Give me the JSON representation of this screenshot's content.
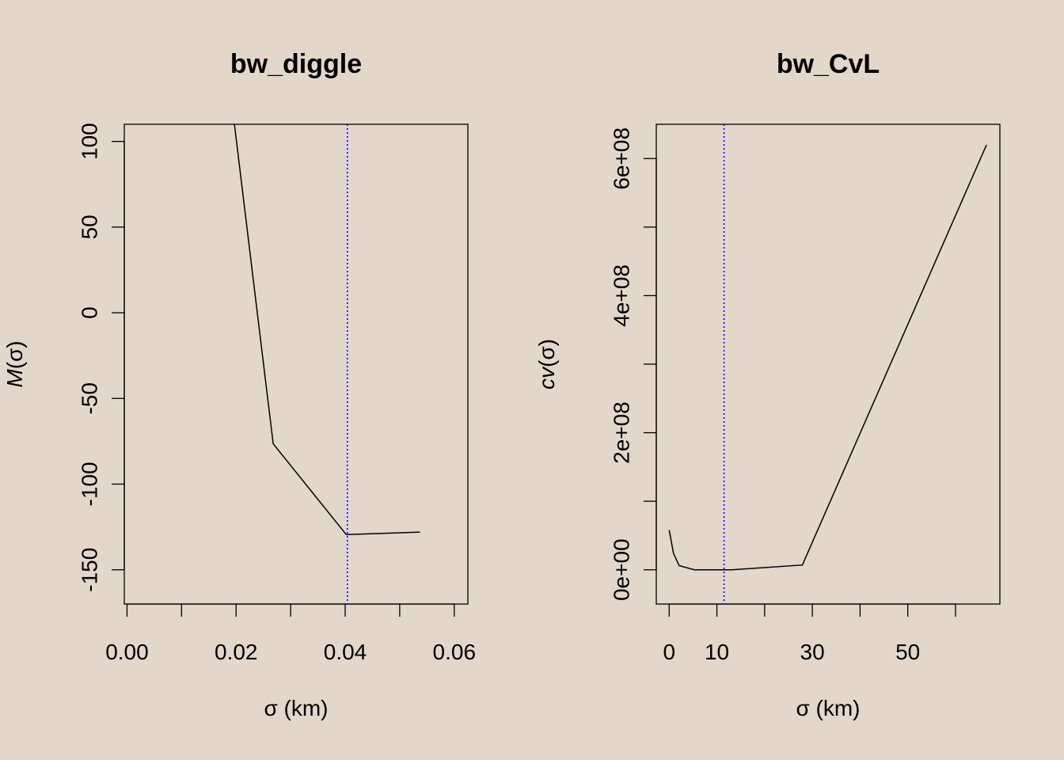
{
  "chart_data": [
    {
      "type": "line",
      "title": "bw_diggle",
      "xlabel": "σ (km)",
      "ylabel_func": "M",
      "ylabel_arg": "(σ)",
      "xlim": [
        -0.0005,
        0.0625
      ],
      "ylim": [
        -170,
        110
      ],
      "xticks": [
        0.0,
        0.01,
        0.02,
        0.03,
        0.04,
        0.05,
        0.06
      ],
      "xtick_labels": [
        "0.00",
        "0.02",
        "0.04",
        "0.06"
      ],
      "xtick_label_values": [
        0.0,
        0.02,
        0.04,
        0.06
      ],
      "yticks": [
        100,
        50,
        0,
        -50,
        -100,
        -150
      ],
      "ytick_labels": [
        "100",
        "50",
        "0",
        "-50",
        "-100",
        "-150"
      ],
      "series": [
        {
          "name": "M(σ)",
          "color": "#000000",
          "x": [
            0.0195,
            0.0268,
            0.0402,
            0.0537
          ],
          "y": [
            115,
            -76.5,
            -129.5,
            -128
          ]
        }
      ],
      "vline": {
        "x": 0.0404,
        "color": "#0000ff",
        "style": "dotted"
      }
    },
    {
      "type": "line",
      "title": "bw_CvL",
      "xlabel": "σ (km)",
      "ylabel_func": "cv",
      "ylabel_arg": "(σ)",
      "xlim": [
        -2.7,
        69.3
      ],
      "ylim": [
        -50000000,
        650000000
      ],
      "xticks": [
        0,
        10,
        20,
        30,
        40,
        50,
        60
      ],
      "xtick_labels": [
        "0",
        "10",
        "30",
        "50"
      ],
      "xtick_label_values": [
        0,
        10,
        30,
        50
      ],
      "yticks": [
        0,
        100000000,
        200000000,
        300000000,
        400000000,
        500000000,
        600000000
      ],
      "ytick_labels": [
        "0e+00",
        "2e+08",
        "4e+08",
        "6e+08"
      ],
      "ytick_label_values": [
        0,
        200000000,
        400000000,
        600000000
      ],
      "series": [
        {
          "name": "cv(σ)",
          "color": "#000000",
          "x": [
            0,
            0.9,
            2.1,
            5.3,
            13.1,
            27.9,
            66.5
          ],
          "y": [
            58000000,
            24000000,
            6000000,
            0,
            0,
            7000000,
            620000000
          ]
        }
      ],
      "vline": {
        "x": 11.5,
        "color": "#0000ff",
        "style": "dotted"
      }
    }
  ]
}
